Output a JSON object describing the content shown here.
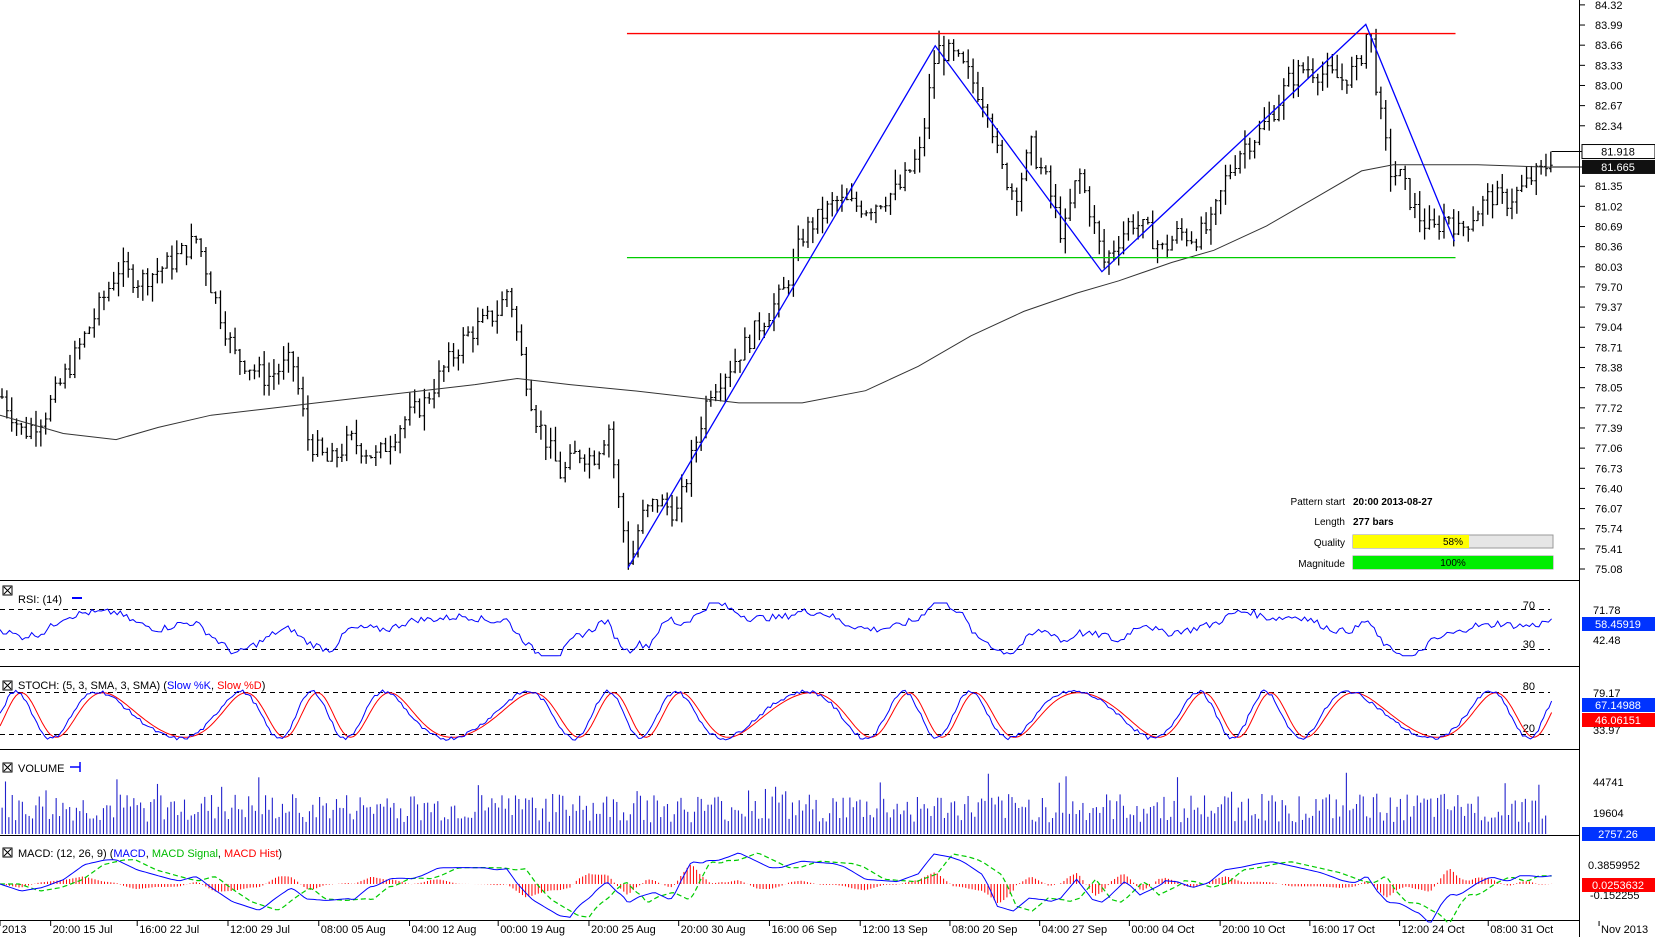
{
  "chart_data": {
    "type": "bar",
    "subtype": "ohlc-with-indicators",
    "price_axis": {
      "ticks": [
        "84.32",
        "83.99",
        "83.66",
        "83.33",
        "83.00",
        "82.67",
        "82.34",
        "81.35",
        "81.02",
        "80.69",
        "80.36",
        "80.03",
        "79.70",
        "79.37",
        "79.04",
        "78.71",
        "78.38",
        "78.05",
        "77.72",
        "77.39",
        "77.06",
        "76.73",
        "76.40",
        "76.07",
        "75.74",
        "75.41",
        "75.08"
      ],
      "range": [
        74.9,
        84.4
      ],
      "current": "81.918",
      "ma_value": "81.665"
    },
    "time_axis": [
      "2013",
      "20:00 15 Jul",
      "16:00 22 Jul",
      "12:00 29 Jul",
      "08:00 05 Aug",
      "04:00 12 Aug",
      "00:00 19 Aug",
      "20:00 25 Aug",
      "20:00 30 Aug",
      "16:00 06 Sep",
      "12:00 13 Sep",
      "08:00 20 Sep",
      "04:00 27 Sep",
      "00:00 04 Oct",
      "20:00 10 Oct",
      "16:00 17 Oct",
      "12:00 24 Oct",
      "08:00 31 Oct",
      "Nov 2013"
    ],
    "price_path": [
      [
        0,
        77.9
      ],
      [
        20,
        77.3
      ],
      [
        40,
        77.6
      ],
      [
        70,
        78.6
      ],
      [
        110,
        80.0
      ],
      [
        130,
        79.8
      ],
      [
        160,
        80.1
      ],
      [
        185,
        80.5
      ],
      [
        200,
        79.6
      ],
      [
        220,
        78.6
      ],
      [
        250,
        78.2
      ],
      [
        275,
        78.5
      ],
      [
        290,
        77.2
      ],
      [
        310,
        76.8
      ],
      [
        330,
        77.2
      ],
      [
        355,
        76.9
      ],
      [
        380,
        77.5
      ],
      [
        400,
        77.8
      ],
      [
        420,
        78.4
      ],
      [
        440,
        78.9
      ],
      [
        470,
        79.3
      ],
      [
        480,
        79.7
      ],
      [
        490,
        78.7
      ],
      [
        505,
        77.6
      ],
      [
        530,
        76.6
      ],
      [
        545,
        77.0
      ],
      [
        560,
        76.9
      ],
      [
        575,
        77.4
      ],
      [
        585,
        76.1
      ],
      [
        595,
        75.1
      ],
      [
        605,
        75.9
      ],
      [
        620,
        76.2
      ],
      [
        640,
        76.0
      ],
      [
        655,
        77.0
      ],
      [
        670,
        78.0
      ],
      [
        690,
        78.4
      ],
      [
        710,
        78.9
      ],
      [
        740,
        79.6
      ],
      [
        760,
        80.6
      ],
      [
        790,
        81.1
      ],
      [
        820,
        81.0
      ],
      [
        850,
        81.3
      ],
      [
        870,
        81.9
      ],
      [
        885,
        83.6
      ],
      [
        900,
        83.5
      ],
      [
        915,
        83.2
      ],
      [
        935,
        82.6
      ],
      [
        945,
        81.7
      ],
      [
        960,
        81.2
      ],
      [
        975,
        82.0
      ],
      [
        990,
        81.4
      ],
      [
        1005,
        80.5
      ],
      [
        1020,
        81.6
      ],
      [
        1030,
        81.0
      ],
      [
        1044,
        80.1
      ],
      [
        1055,
        80.4
      ],
      [
        1070,
        80.8
      ],
      [
        1085,
        80.6
      ],
      [
        1100,
        80.3
      ],
      [
        1115,
        80.6
      ],
      [
        1130,
        80.5
      ],
      [
        1145,
        80.7
      ],
      [
        1160,
        81.5
      ],
      [
        1175,
        82.0
      ],
      [
        1190,
        82.2
      ],
      [
        1205,
        82.6
      ],
      [
        1220,
        83.1
      ],
      [
        1235,
        83.3
      ],
      [
        1250,
        83.2
      ],
      [
        1270,
        83.1
      ],
      [
        1285,
        83.3
      ],
      [
        1295,
        84.0
      ],
      [
        1305,
        82.6
      ],
      [
        1315,
        81.6
      ],
      [
        1325,
        81.5
      ],
      [
        1340,
        80.9
      ],
      [
        1355,
        80.6
      ],
      [
        1370,
        80.9
      ],
      [
        1380,
        80.6
      ],
      [
        1395,
        80.9
      ],
      [
        1410,
        81.2
      ],
      [
        1425,
        81.1
      ],
      [
        1440,
        81.3
      ],
      [
        1450,
        81.5
      ],
      [
        1460,
        81.6
      ],
      [
        1470,
        81.9
      ]
    ],
    "ma_path": [
      [
        0,
        77.6
      ],
      [
        60,
        77.3
      ],
      [
        110,
        77.2
      ],
      [
        150,
        77.4
      ],
      [
        200,
        77.6
      ],
      [
        250,
        77.7
      ],
      [
        300,
        77.8
      ],
      [
        350,
        77.9
      ],
      [
        400,
        78.0
      ],
      [
        450,
        78.1
      ],
      [
        490,
        78.2
      ],
      [
        540,
        78.1
      ],
      [
        600,
        78.0
      ],
      [
        650,
        77.9
      ],
      [
        700,
        77.8
      ],
      [
        760,
        77.8
      ],
      [
        820,
        78.0
      ],
      [
        870,
        78.4
      ],
      [
        920,
        78.9
      ],
      [
        970,
        79.3
      ],
      [
        1020,
        79.6
      ],
      [
        1060,
        79.8
      ],
      [
        1110,
        80.1
      ],
      [
        1150,
        80.3
      ],
      [
        1200,
        80.7
      ],
      [
        1250,
        81.2
      ],
      [
        1290,
        81.6
      ],
      [
        1320,
        81.7
      ],
      [
        1400,
        81.7
      ],
      [
        1470,
        81.66
      ]
    ],
    "pattern_lines": {
      "resistance": {
        "x1": 594,
        "x2": 1379,
        "y": 83.85
      },
      "support": {
        "x1": 594,
        "x2": 1379,
        "y": 80.18
      },
      "zigzag": [
        [
          595,
          75.1
        ],
        [
          886,
          83.65
        ],
        [
          1044,
          79.95
        ],
        [
          1294,
          84.0
        ],
        [
          1378,
          80.45
        ]
      ]
    },
    "pattern_info": {
      "pattern_start_label": "Pattern start",
      "pattern_start_value": "20:00 2013-08-27",
      "length_label": "Length",
      "length_value": "277 bars",
      "quality_label": "Quality",
      "quality_value": "58%",
      "quality_fraction": 0.58,
      "magnitude_label": "Magnitude",
      "magnitude_value": "100%",
      "magnitude_fraction": 1.0
    },
    "panels": {
      "rsi": {
        "title": "RSI: (14)",
        "levels": [
          "70",
          "30"
        ],
        "axis_ticks": [
          "71.78",
          "42.48"
        ],
        "current": "58.45919",
        "curve_seed": 11
      },
      "stoch": {
        "title_prefix": "STOCH: (5, 3, SMA, 3, SMA) (",
        "k_label": "Slow %K",
        "comma": ", ",
        "d_label": "Slow %D",
        "title_suffix": ")",
        "levels": [
          "80",
          "20"
        ],
        "axis_ticks": [
          "79.17",
          "33.97"
        ],
        "k_current": "67.14988",
        "d_current": "46.06151"
      },
      "volume": {
        "title": "VOLUME",
        "axis_ticks": [
          "44741",
          "19604"
        ],
        "current": "2757.26"
      },
      "macd": {
        "title_prefix": "MACD: (12, 26, 9) (",
        "macd_label": "MACD",
        "comma": ", ",
        "signal_label": "MACD Signal",
        "hist_label": "MACD Hist",
        "title_suffix": ")",
        "axis_ticks": [
          "0.3859952",
          "-0.152255"
        ],
        "current": "0.0253632"
      }
    }
  },
  "colors": {
    "bars": "#000000",
    "ma": "#333333",
    "zigzag": "#0000ff",
    "resistance": "#ff0000",
    "support": "#00cc00",
    "rsi": "#0000ff",
    "stoch_k": "#0000ff",
    "stoch_d": "#ff0000",
    "volume": "#2222cc",
    "macd": "#0000ff",
    "macd_signal": "#00cc00",
    "macd_hist": "#ff0000",
    "badge_blue": "#0033ff",
    "badge_red": "#ff0000",
    "badge_black": "#111111",
    "quality_fill": "#ffff00",
    "magnitude_fill": "#00ee00"
  }
}
